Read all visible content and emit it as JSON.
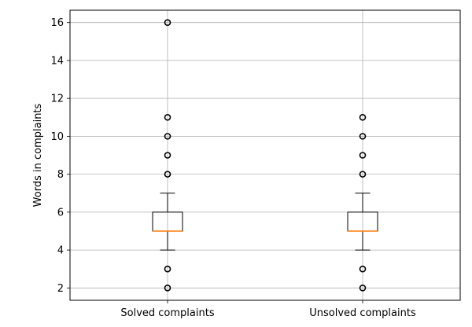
{
  "chart_data": {
    "type": "box",
    "title": "",
    "xlabel": "",
    "ylabel": "Words in complaints",
    "ylim": [
      1.35,
      16.65
    ],
    "y_ticks": [
      2,
      4,
      6,
      8,
      10,
      12,
      14,
      16
    ],
    "grid": true,
    "categories": [
      "Solved complaints",
      "Unsolved complaints"
    ],
    "boxes": [
      {
        "label": "Solved complaints",
        "whisker_low": 4,
        "q1": 5,
        "median": 5,
        "q3": 6,
        "whisker_high": 7,
        "outliers": [
          2,
          3,
          8,
          9,
          10,
          11,
          16
        ]
      },
      {
        "label": "Unsolved complaints",
        "whisker_low": 4,
        "q1": 5,
        "median": 5,
        "q3": 6,
        "whisker_high": 7,
        "outliers": [
          2,
          3,
          8,
          9,
          10,
          11
        ]
      }
    ],
    "colors": {
      "median": "#ff7f0e",
      "box": "#000000",
      "grid": "#b0b0b0",
      "frame": "#000000"
    }
  }
}
